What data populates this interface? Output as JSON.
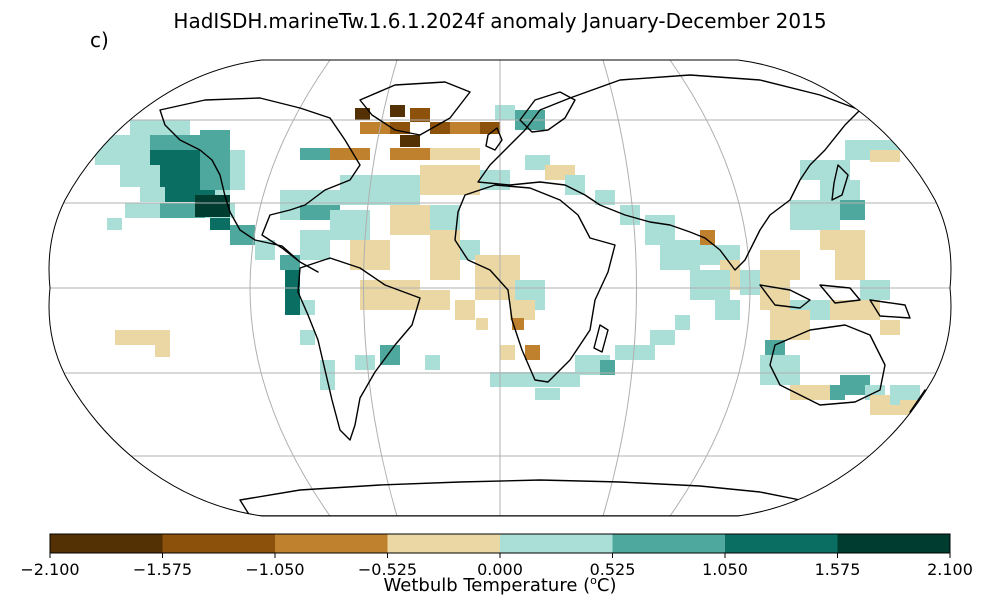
{
  "title": "HadISDH.marineTw.1.6.1.2024f anomaly January-December 2015",
  "panel_label": "c)",
  "colorbar": {
    "label_prefix": "Wetbulb Temperature (",
    "label_sup": "o",
    "label_suffix": "C)",
    "ticks": [
      "−2.100",
      "−1.575",
      "−1.050",
      "−0.525",
      "0.000",
      "0.525",
      "1.050",
      "1.575",
      "2.100"
    ],
    "colors": [
      "#543005",
      "#8c510a",
      "#bf812d",
      "#ebd7a3",
      "#aadfd8",
      "#4fa89d",
      "#0b6e63",
      "#003c30"
    ]
  },
  "map": {
    "projection": "Robinson",
    "graticule": true,
    "palette": {
      "dark_brown": "#543005",
      "brown": "#8c510a",
      "tan": "#bf812d",
      "beige": "#ebd7a3",
      "light_teal": "#aadfd8",
      "teal": "#4fa89d",
      "dark_teal": "#0b6e63",
      "darkest_teal": "#003c30"
    }
  }
}
